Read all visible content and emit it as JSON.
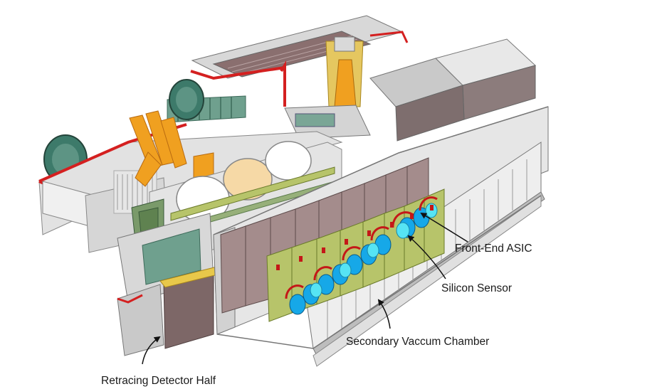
{
  "labels": {
    "front_end_asic": "Front-End ASIC",
    "silicon_sensor": "Silicon Sensor",
    "secondary_vacuum_chamber": "Secondary Vaccum Chamber",
    "retracting_detector_half": "Retracing Detector Half"
  },
  "colors": {
    "background": "#ffffff",
    "frame": "#dcdcdc",
    "frame_edge": "#7a7a7a",
    "red_trim": "#d42020",
    "flange_green": "#3d7a6a",
    "bellows_green": "#6fa08e",
    "hybrid_olive": "#b7c46a",
    "module_mauve": "#a48c8c",
    "sensor_blue": "#16a8e8",
    "sensor_cyan": "#56e4f4",
    "rf_orange": "#f0a020",
    "asic_red": "#c41818",
    "arrow": "#111111"
  }
}
